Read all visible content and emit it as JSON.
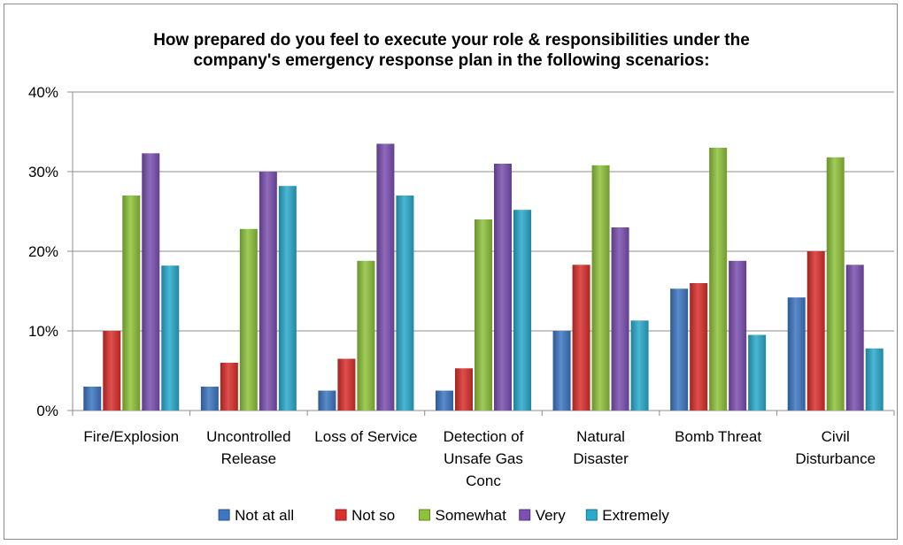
{
  "chart_data": {
    "type": "bar",
    "title_lines": [
      "How prepared do you feel to execute your role & responsibilities under the",
      "company's emergency response plan in the following scenarios:"
    ],
    "categories": [
      [
        "Fire/Explosion"
      ],
      [
        "Uncontrolled",
        "Release"
      ],
      [
        "Loss of Service"
      ],
      [
        "Detection of",
        "Unsafe Gas",
        "Conc"
      ],
      [
        "Natural",
        "Disaster"
      ],
      [
        "Bomb Threat"
      ],
      [
        "Civil",
        "Disturbance"
      ]
    ],
    "series": [
      {
        "name": "Not at all",
        "color": "#3d77c2",
        "values": [
          3,
          3,
          2.5,
          2.5,
          10,
          15.3,
          14.2
        ]
      },
      {
        "name": "Not so",
        "color": "#d9302c",
        "values": [
          10,
          6,
          6.5,
          5.3,
          18.3,
          16,
          20
        ]
      },
      {
        "name": "Somewhat",
        "color": "#8fc23b",
        "values": [
          27,
          22.8,
          18.8,
          24,
          30.8,
          33,
          31.8
        ]
      },
      {
        "name": "Very",
        "color": "#7b50b0",
        "values": [
          32.3,
          30,
          33.5,
          31,
          23,
          18.8,
          18.3
        ]
      },
      {
        "name": "Extremely",
        "color": "#2aaacc",
        "values": [
          18.2,
          28.2,
          27,
          25.2,
          11.3,
          9.5,
          7.8
        ]
      }
    ],
    "yticks": [
      "0%",
      "10%",
      "20%",
      "30%",
      "40%"
    ],
    "ylim": [
      0,
      40
    ],
    "xlabel": "",
    "ylabel": "",
    "grid": true,
    "legend_position": "bottom"
  }
}
